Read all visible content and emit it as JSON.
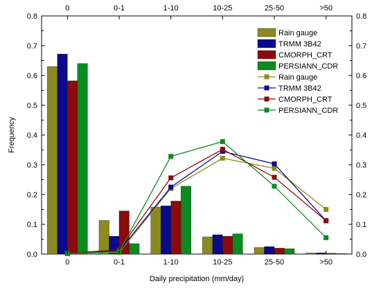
{
  "chart_data": {
    "type": "bar",
    "categories": [
      "0",
      "0-1",
      "1-10",
      "10-25",
      "25-50",
      ">50"
    ],
    "xlabel": "Daily precipitation (mm/day)",
    "ylabel": "Frequency",
    "ylim": [
      0.0,
      0.8
    ],
    "yticks": [
      "0.0",
      "0.1",
      "0.2",
      "0.3",
      "0.4",
      "0.5",
      "0.6",
      "0.7",
      "0.8"
    ],
    "grid": false,
    "legend_position": "top-right",
    "bar_series": [
      {
        "name": "Rain gauge",
        "color": "#8c8a1e",
        "values": [
          0.63,
          0.113,
          0.158,
          0.058,
          0.022,
          0.004
        ]
      },
      {
        "name": "TRMM 3B42",
        "color": "#0a0a8c",
        "values": [
          0.672,
          0.06,
          0.162,
          0.065,
          0.025,
          0.004
        ]
      },
      {
        "name": "CMORPH_CRT",
        "color": "#8c0a0a",
        "values": [
          0.582,
          0.145,
          0.178,
          0.06,
          0.02,
          0.003
        ]
      },
      {
        "name": "PERSIANN_CDR",
        "color": "#0a8c1e",
        "values": [
          0.64,
          0.035,
          0.228,
          0.068,
          0.018,
          0.002
        ]
      }
    ],
    "line_series": [
      {
        "name": "Rain gauge",
        "color": "#8c8a1e",
        "values": [
          0.003,
          0.005,
          0.22,
          0.322,
          0.288,
          0.15
        ]
      },
      {
        "name": "TRMM 3B42",
        "color": "#0a0a8c",
        "values": [
          0.002,
          0.01,
          0.225,
          0.345,
          0.303,
          0.112
        ]
      },
      {
        "name": "CMORPH_CRT",
        "color": "#8c0a0a",
        "values": [
          0.002,
          0.015,
          0.256,
          0.352,
          0.258,
          0.112
        ]
      },
      {
        "name": "PERSIANN_CDR",
        "color": "#0a8c1e",
        "values": [
          0.002,
          0.008,
          0.328,
          0.378,
          0.228,
          0.055
        ]
      }
    ]
  }
}
